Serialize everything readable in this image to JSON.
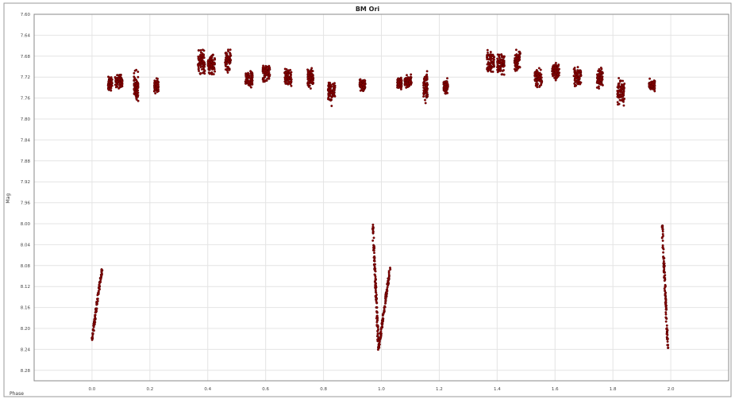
{
  "chart_data": {
    "type": "scatter",
    "title": "BM Ori",
    "xlabel": "Phase",
    "ylabel": "Mag",
    "xlim": [
      -0.2,
      2.2
    ],
    "ylim": [
      8.3,
      7.6
    ],
    "y_inverted": true,
    "grid": true,
    "x_ticks": [
      "0.0",
      "0.2",
      "0.4",
      "0.6",
      "0.8",
      "1.0",
      "1.2",
      "1.4",
      "1.6",
      "1.8",
      "2.0"
    ],
    "x_tick_values": [
      0.0,
      0.2,
      0.4,
      0.6,
      0.8,
      1.0,
      1.2,
      1.4,
      1.6,
      1.8,
      2.0
    ],
    "y_ticks": [
      "7.60",
      "7.64",
      "7.68",
      "7.72",
      "7.76",
      "7.80",
      "7.84",
      "7.88",
      "7.92",
      "7.96",
      "8.00",
      "8.04",
      "8.08",
      "8.12",
      "8.16",
      "8.20",
      "8.24",
      "8.28"
    ],
    "y_tick_values": [
      7.6,
      7.64,
      7.68,
      7.72,
      7.76,
      7.8,
      7.84,
      7.88,
      7.92,
      7.96,
      8.0,
      8.04,
      8.08,
      8.12,
      8.16,
      8.2,
      8.24,
      8.28
    ],
    "marker_color": "#8b0000",
    "clusters": [
      {
        "x": [
          0.055,
          0.07
        ],
        "y": [
          7.715,
          7.75
        ]
      },
      {
        "x": [
          0.08,
          0.105
        ],
        "y": [
          7.71,
          7.745
        ]
      },
      {
        "x": [
          0.145,
          0.16
        ],
        "y": [
          7.7,
          7.78
        ]
      },
      {
        "x": [
          0.215,
          0.23
        ],
        "y": [
          7.72,
          7.755
        ]
      },
      {
        "x": [
          0.365,
          0.39
        ],
        "y": [
          7.66,
          7.725
        ]
      },
      {
        "x": [
          0.4,
          0.425
        ],
        "y": [
          7.67,
          7.72
        ]
      },
      {
        "x": [
          0.46,
          0.48
        ],
        "y": [
          7.66,
          7.715
        ]
      },
      {
        "x": [
          0.53,
          0.555
        ],
        "y": [
          7.7,
          7.745
        ]
      },
      {
        "x": [
          0.59,
          0.615
        ],
        "y": [
          7.685,
          7.735
        ]
      },
      {
        "x": [
          0.665,
          0.69
        ],
        "y": [
          7.695,
          7.745
        ]
      },
      {
        "x": [
          0.745,
          0.765
        ],
        "y": [
          7.695,
          7.745
        ]
      },
      {
        "x": [
          0.815,
          0.84
        ],
        "y": [
          7.715,
          7.78
        ]
      },
      {
        "x": [
          0.925,
          0.945
        ],
        "y": [
          7.72,
          7.75
        ]
      },
      {
        "x": [
          1.055,
          1.07
        ],
        "y": [
          7.715,
          7.75
        ]
      },
      {
        "x": [
          1.08,
          1.105
        ],
        "y": [
          7.71,
          7.745
        ]
      },
      {
        "x": [
          1.145,
          1.16
        ],
        "y": [
          7.7,
          7.78
        ]
      },
      {
        "x": [
          1.215,
          1.23
        ],
        "y": [
          7.72,
          7.755
        ]
      },
      {
        "x": [
          1.365,
          1.39
        ],
        "y": [
          7.66,
          7.725
        ]
      },
      {
        "x": [
          1.4,
          1.425
        ],
        "y": [
          7.67,
          7.72
        ]
      },
      {
        "x": [
          1.46,
          1.48
        ],
        "y": [
          7.66,
          7.715
        ]
      },
      {
        "x": [
          1.53,
          1.555
        ],
        "y": [
          7.7,
          7.745
        ]
      },
      {
        "x": [
          1.59,
          1.615
        ],
        "y": [
          7.685,
          7.735
        ]
      },
      {
        "x": [
          1.665,
          1.69
        ],
        "y": [
          7.695,
          7.745
        ]
      },
      {
        "x": [
          1.745,
          1.765
        ],
        "y": [
          7.695,
          7.745
        ]
      },
      {
        "x": [
          1.815,
          1.84
        ],
        "y": [
          7.715,
          7.78
        ]
      },
      {
        "x": [
          1.925,
          1.945
        ],
        "y": [
          7.72,
          7.75
        ]
      }
    ],
    "eclipse_tracks": [
      {
        "x": [
          0.0,
          0.035
        ],
        "y": [
          8.22,
          8.085
        ]
      },
      {
        "x": [
          0.97,
          0.99
        ],
        "y": [
          8.0,
          8.24
        ]
      },
      {
        "x": [
          0.99,
          1.03
        ],
        "y": [
          8.24,
          8.085
        ]
      },
      {
        "x": [
          1.97,
          1.99
        ],
        "y": [
          8.0,
          8.24
        ]
      }
    ]
  }
}
